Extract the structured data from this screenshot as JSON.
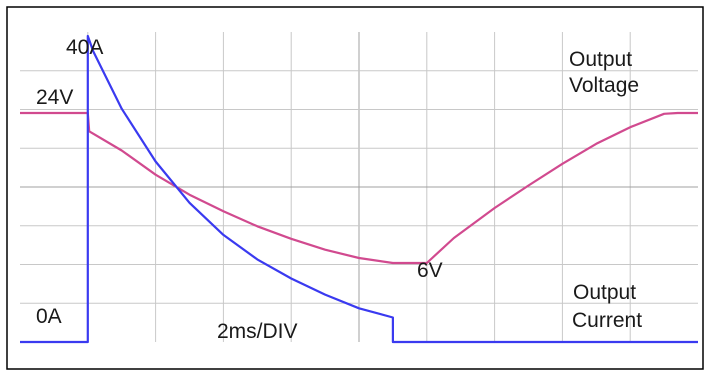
{
  "chart_data": {
    "type": "line",
    "time_scale_label": "2ms/DIV",
    "x_divisions": 10,
    "y_divisions": 8,
    "grid": true,
    "colors": {
      "voltage": "#d14a8f",
      "current": "#3a3af0",
      "grid": "#c8c8c8",
      "frame": "#000000"
    },
    "annotations": {
      "current_peak": "40A",
      "voltage_nominal": "24V",
      "current_zero": "0A",
      "voltage_min": "6V",
      "voltage_series_line1": "Output",
      "voltage_series_line2": "Voltage",
      "current_series_line1": "Output",
      "current_series_line2": "Current",
      "timebase": "2ms/DIV"
    },
    "series": [
      {
        "name": "Output Voltage",
        "unit": "V",
        "x": [
          0,
          1.0,
          1.02,
          1.5,
          2,
          2.5,
          3,
          3.5,
          4,
          4.5,
          5,
          5.5,
          5.8,
          6.0,
          6.4,
          7,
          7.5,
          8,
          8.5,
          9,
          9.5,
          9.7,
          10
        ],
        "values": [
          24,
          24,
          21.8,
          19.5,
          16.6,
          14.2,
          12.2,
          10.4,
          8.9,
          7.6,
          6.6,
          6.0,
          6.0,
          6.0,
          9.0,
          12.6,
          15.3,
          17.9,
          20.3,
          22.3,
          23.9,
          24,
          24
        ]
      },
      {
        "name": "Output Current",
        "unit": "A",
        "x": [
          0,
          1.0,
          1.0,
          1.08,
          1.5,
          2,
          2.5,
          3,
          3.5,
          4,
          4.5,
          5,
          5.5,
          5.5,
          10
        ],
        "values": [
          0,
          0,
          40,
          38,
          30.5,
          23.6,
          18.2,
          14.0,
          10.8,
          8.3,
          6.2,
          4.4,
          3.2,
          0,
          0
        ]
      }
    ]
  }
}
